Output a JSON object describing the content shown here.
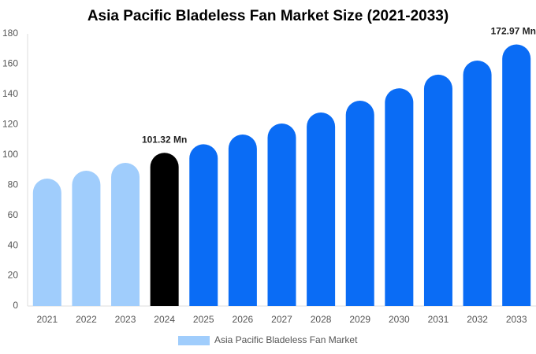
{
  "chart_data": {
    "type": "bar",
    "title": "Asia Pacific Bladeless Fan Market Size (2021-2033)",
    "categories": [
      "2021",
      "2022",
      "2023",
      "2024",
      "2025",
      "2026",
      "2027",
      "2028",
      "2029",
      "2030",
      "2031",
      "2032",
      "2033"
    ],
    "series": [
      {
        "name": "Asia Pacific Bladeless Fan Market",
        "color": "#a0cdfc",
        "values": [
          84.3,
          89.5,
          94.7,
          101.32,
          107,
          113.4,
          120.7,
          128,
          135.8,
          144,
          153,
          162.3,
          172.97
        ],
        "value_labels": [
          null,
          null,
          null,
          "101.32 Mn",
          null,
          null,
          null,
          null,
          null,
          null,
          null,
          null,
          "172.97 Mn"
        ],
        "colors": [
          "#a0cdfc",
          "#a0cdfc",
          "#a0cdfc",
          "#000000",
          "#0a6cf5",
          "#0a6cf5",
          "#0a6cf5",
          "#0a6cf5",
          "#0a6cf5",
          "#0a6cf5",
          "#0a6cf5",
          "#0a6cf5",
          "#0a6cf5"
        ]
      }
    ],
    "ylim": [
      0,
      180
    ],
    "yticks": [
      0,
      20,
      40,
      60,
      80,
      100,
      120,
      140,
      160,
      180
    ],
    "grid": false,
    "legend": "bottom"
  }
}
